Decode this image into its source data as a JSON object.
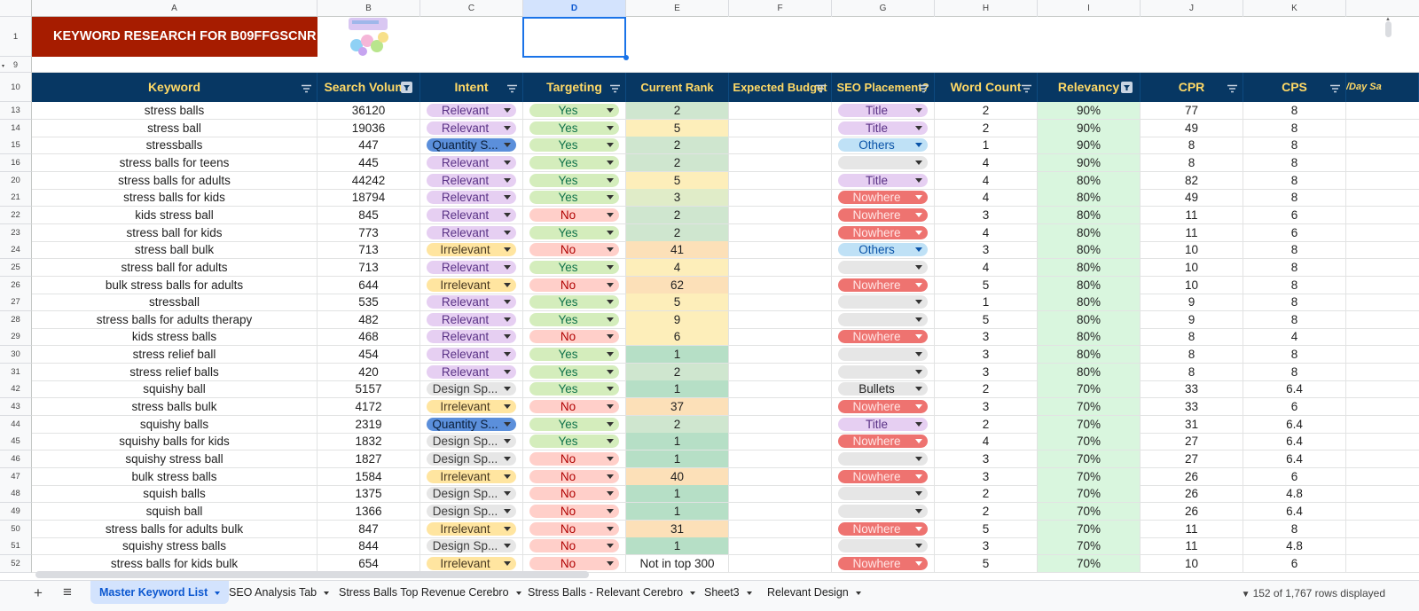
{
  "columns": [
    "A",
    "B",
    "C",
    "D",
    "E",
    "F",
    "G",
    "H",
    "I",
    "J",
    "K"
  ],
  "title_cell": "KEYWORD RESEARCH FOR B09FFGSCNR",
  "header_row_number": "10",
  "hidden_rows_label": "9",
  "headers": [
    "Keyword",
    "Search Volume",
    "Intent",
    "Targeting",
    "Current Rank",
    "Expected Budget",
    "SEO Placement?",
    "Word Count",
    "Relevancy",
    "CPR",
    "CPS",
    "/Day Sa"
  ],
  "rows": [
    {
      "n": "13",
      "kw": "stress balls",
      "sv": "36120",
      "intent": "Relevant",
      "tgt": "Yes",
      "rank": "2",
      "seo": "Title",
      "wc": "2",
      "rel": "90%",
      "cpr": "77",
      "cps": "8"
    },
    {
      "n": "14",
      "kw": "stress ball",
      "sv": "19036",
      "intent": "Relevant",
      "tgt": "Yes",
      "rank": "5",
      "seo": "Title",
      "wc": "2",
      "rel": "90%",
      "cpr": "49",
      "cps": "8"
    },
    {
      "n": "15",
      "kw": "stressballs",
      "sv": "447",
      "intent": "Quantity S...",
      "tgt": "Yes",
      "rank": "2",
      "seo": "Others",
      "wc": "1",
      "rel": "90%",
      "cpr": "8",
      "cps": "8"
    },
    {
      "n": "16",
      "kw": "stress balls for teens",
      "sv": "445",
      "intent": "Relevant",
      "tgt": "Yes",
      "rank": "2",
      "seo": "",
      "wc": "4",
      "rel": "90%",
      "cpr": "8",
      "cps": "8"
    },
    {
      "n": "20",
      "kw": "stress balls for adults",
      "sv": "44242",
      "intent": "Relevant",
      "tgt": "Yes",
      "rank": "5",
      "seo": "Title",
      "wc": "4",
      "rel": "80%",
      "cpr": "82",
      "cps": "8"
    },
    {
      "n": "21",
      "kw": "stress balls for kids",
      "sv": "18794",
      "intent": "Relevant",
      "tgt": "Yes",
      "rank": "3",
      "seo": "Nowhere",
      "wc": "4",
      "rel": "80%",
      "cpr": "49",
      "cps": "8"
    },
    {
      "n": "22",
      "kw": "kids stress ball",
      "sv": "845",
      "intent": "Relevant",
      "tgt": "No",
      "rank": "2",
      "seo": "Nowhere",
      "wc": "3",
      "rel": "80%",
      "cpr": "11",
      "cps": "6"
    },
    {
      "n": "23",
      "kw": "stress ball for kids",
      "sv": "773",
      "intent": "Relevant",
      "tgt": "Yes",
      "rank": "2",
      "seo": "Nowhere",
      "wc": "4",
      "rel": "80%",
      "cpr": "11",
      "cps": "6"
    },
    {
      "n": "24",
      "kw": "stress ball bulk",
      "sv": "713",
      "intent": "Irrelevant",
      "tgt": "No",
      "rank": "41",
      "seo": "Others",
      "wc": "3",
      "rel": "80%",
      "cpr": "10",
      "cps": "8"
    },
    {
      "n": "25",
      "kw": "stress ball for adults",
      "sv": "713",
      "intent": "Relevant",
      "tgt": "Yes",
      "rank": "4",
      "seo": "",
      "wc": "4",
      "rel": "80%",
      "cpr": "10",
      "cps": "8"
    },
    {
      "n": "26",
      "kw": "bulk stress balls for adults",
      "sv": "644",
      "intent": "Irrelevant",
      "tgt": "No",
      "rank": "62",
      "seo": "Nowhere",
      "wc": "5",
      "rel": "80%",
      "cpr": "10",
      "cps": "8"
    },
    {
      "n": "27",
      "kw": "stressball",
      "sv": "535",
      "intent": "Relevant",
      "tgt": "Yes",
      "rank": "5",
      "seo": "",
      "wc": "1",
      "rel": "80%",
      "cpr": "9",
      "cps": "8"
    },
    {
      "n": "28",
      "kw": "stress balls for adults therapy",
      "sv": "482",
      "intent": "Relevant",
      "tgt": "Yes",
      "rank": "9",
      "seo": "",
      "wc": "5",
      "rel": "80%",
      "cpr": "9",
      "cps": "8"
    },
    {
      "n": "29",
      "kw": "kids stress balls",
      "sv": "468",
      "intent": "Relevant",
      "tgt": "No",
      "rank": "6",
      "seo": "Nowhere",
      "wc": "3",
      "rel": "80%",
      "cpr": "8",
      "cps": "4"
    },
    {
      "n": "30",
      "kw": "stress relief ball",
      "sv": "454",
      "intent": "Relevant",
      "tgt": "Yes",
      "rank": "1",
      "seo": "",
      "wc": "3",
      "rel": "80%",
      "cpr": "8",
      "cps": "8"
    },
    {
      "n": "31",
      "kw": "stress relief balls",
      "sv": "420",
      "intent": "Relevant",
      "tgt": "Yes",
      "rank": "2",
      "seo": "",
      "wc": "3",
      "rel": "80%",
      "cpr": "8",
      "cps": "8"
    },
    {
      "n": "42",
      "kw": "squishy ball",
      "sv": "5157",
      "intent": "Design Sp...",
      "tgt": "Yes",
      "rank": "1",
      "seo": "Bullets",
      "wc": "2",
      "rel": "70%",
      "cpr": "33",
      "cps": "6.4"
    },
    {
      "n": "43",
      "kw": "stress balls bulk",
      "sv": "4172",
      "intent": "Irrelevant",
      "tgt": "No",
      "rank": "37",
      "seo": "Nowhere",
      "wc": "3",
      "rel": "70%",
      "cpr": "33",
      "cps": "6"
    },
    {
      "n": "44",
      "kw": "squishy balls",
      "sv": "2319",
      "intent": "Quantity S...",
      "tgt": "Yes",
      "rank": "2",
      "seo": "Title",
      "wc": "2",
      "rel": "70%",
      "cpr": "31",
      "cps": "6.4"
    },
    {
      "n": "45",
      "kw": "squishy balls for kids",
      "sv": "1832",
      "intent": "Design Sp...",
      "tgt": "Yes",
      "rank": "1",
      "seo": "Nowhere",
      "wc": "4",
      "rel": "70%",
      "cpr": "27",
      "cps": "6.4"
    },
    {
      "n": "46",
      "kw": "squishy stress ball",
      "sv": "1827",
      "intent": "Design Sp...",
      "tgt": "No",
      "rank": "1",
      "seo": "",
      "wc": "3",
      "rel": "70%",
      "cpr": "27",
      "cps": "6.4"
    },
    {
      "n": "47",
      "kw": "bulk stress balls",
      "sv": "1584",
      "intent": "Irrelevant",
      "tgt": "No",
      "rank": "40",
      "seo": "Nowhere",
      "wc": "3",
      "rel": "70%",
      "cpr": "26",
      "cps": "6"
    },
    {
      "n": "48",
      "kw": "squish balls",
      "sv": "1375",
      "intent": "Design Sp...",
      "tgt": "No",
      "rank": "1",
      "seo": "",
      "wc": "2",
      "rel": "70%",
      "cpr": "26",
      "cps": "4.8"
    },
    {
      "n": "49",
      "kw": "squish ball",
      "sv": "1366",
      "intent": "Design Sp...",
      "tgt": "No",
      "rank": "1",
      "seo": "",
      "wc": "2",
      "rel": "70%",
      "cpr": "26",
      "cps": "6.4"
    },
    {
      "n": "50",
      "kw": "stress balls for adults bulk",
      "sv": "847",
      "intent": "Irrelevant",
      "tgt": "No",
      "rank": "31",
      "seo": "Nowhere",
      "wc": "5",
      "rel": "70%",
      "cpr": "11",
      "cps": "8"
    },
    {
      "n": "51",
      "kw": "squishy stress balls",
      "sv": "844",
      "intent": "Design Sp...",
      "tgt": "No",
      "rank": "1",
      "seo": "",
      "wc": "3",
      "rel": "70%",
      "cpr": "11",
      "cps": "4.8"
    },
    {
      "n": "52",
      "kw": "stress balls for kids bulk",
      "sv": "654",
      "intent": "Irrelevant",
      "tgt": "No",
      "rank": "Not in top 300",
      "seo": "Nowhere",
      "wc": "5",
      "rel": "70%",
      "cpr": "10",
      "cps": "6"
    }
  ],
  "tabs": [
    "Master Keyword List",
    "SEO Analysis Tab",
    "Stress Balls Top Revenue Cerebro",
    "Stress Balls - Relevant Cerebro",
    "Sheet3",
    "Relevant Design"
  ],
  "active_tab": 0,
  "status": "152 of 1,767 rows displayed",
  "add_sheet_glyph": "+",
  "all_sheets_glyph": "≡",
  "colors": {
    "header_bg": "#073763",
    "header_text": "#ffd966",
    "title_bg": "#a61c00",
    "relevancy_bg": "#d9f6de"
  }
}
